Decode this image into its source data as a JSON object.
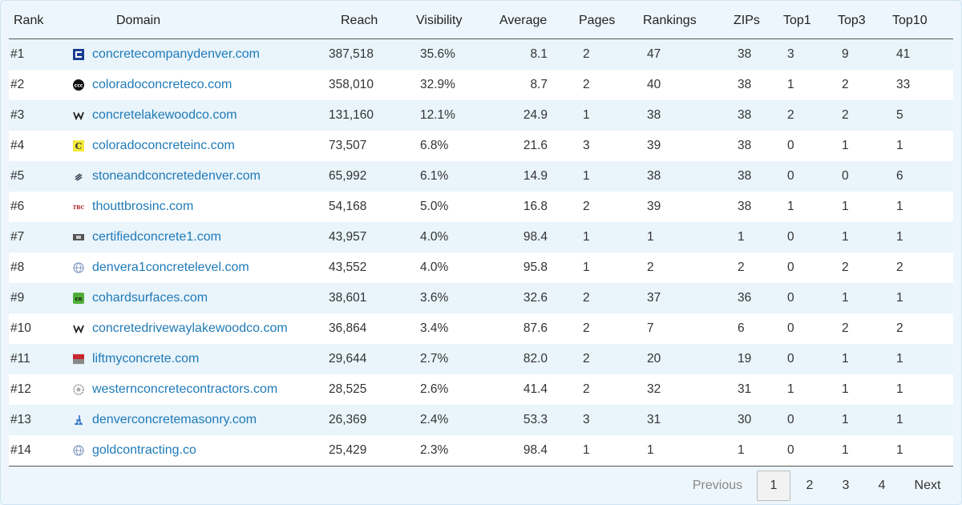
{
  "headers": {
    "rank": "Rank",
    "domain": "Domain",
    "reach": "Reach",
    "visibility": "Visibility",
    "average": "Average",
    "pages": "Pages",
    "rankings": "Rankings",
    "zips": "ZIPs",
    "top1": "Top1",
    "top3": "Top3",
    "top10": "Top10"
  },
  "rows": [
    {
      "rank": "#1",
      "domain": "concretecompanydenver.com",
      "icon": "square-logo-icon",
      "reach": "387,518",
      "visibility": "35.6%",
      "average": "8.1",
      "pages": "2",
      "rankings": "47",
      "zips": "38",
      "top1": "3",
      "top3": "9",
      "top10": "41"
    },
    {
      "rank": "#2",
      "domain": "coloradoconcreteco.com",
      "icon": "black-circle-logo-icon",
      "reach": "358,010",
      "visibility": "32.9%",
      "average": "8.7",
      "pages": "2",
      "rankings": "40",
      "zips": "38",
      "top1": "1",
      "top3": "2",
      "top10": "33"
    },
    {
      "rank": "#3",
      "domain": "concretelakewoodco.com",
      "icon": "w-logo-icon",
      "reach": "131,160",
      "visibility": "12.1%",
      "average": "24.9",
      "pages": "1",
      "rankings": "38",
      "zips": "38",
      "top1": "2",
      "top3": "2",
      "top10": "5"
    },
    {
      "rank": "#4",
      "domain": "coloradoconcreteinc.com",
      "icon": "yellow-c-logo-icon",
      "reach": "73,507",
      "visibility": "6.8%",
      "average": "21.6",
      "pages": "3",
      "rankings": "39",
      "zips": "38",
      "top1": "0",
      "top3": "1",
      "top10": "1"
    },
    {
      "rank": "#5",
      "domain": "stoneandconcretedenver.com",
      "icon": "stripe-logo-icon",
      "reach": "65,992",
      "visibility": "6.1%",
      "average": "14.9",
      "pages": "1",
      "rankings": "38",
      "zips": "38",
      "top1": "0",
      "top3": "0",
      "top10": "6"
    },
    {
      "rank": "#6",
      "domain": "thouttbrosinc.com",
      "icon": "tbc-logo-icon",
      "reach": "54,168",
      "visibility": "5.0%",
      "average": "16.8",
      "pages": "2",
      "rankings": "39",
      "zips": "38",
      "top1": "1",
      "top3": "1",
      "top10": "1"
    },
    {
      "rank": "#7",
      "domain": "certifiedconcrete1.com",
      "icon": "grey-badge-logo-icon",
      "reach": "43,957",
      "visibility": "4.0%",
      "average": "98.4",
      "pages": "1",
      "rankings": "1",
      "zips": "1",
      "top1": "0",
      "top3": "1",
      "top10": "1"
    },
    {
      "rank": "#8",
      "domain": "denvera1concretelevel.com",
      "icon": "globe-icon",
      "reach": "43,552",
      "visibility": "4.0%",
      "average": "95.8",
      "pages": "1",
      "rankings": "2",
      "zips": "2",
      "top1": "0",
      "top3": "2",
      "top10": "2"
    },
    {
      "rank": "#9",
      "domain": "cohardsurfaces.com",
      "icon": "green-co-logo-icon",
      "reach": "38,601",
      "visibility": "3.6%",
      "average": "32.6",
      "pages": "2",
      "rankings": "37",
      "zips": "36",
      "top1": "0",
      "top3": "1",
      "top10": "1"
    },
    {
      "rank": "#10",
      "domain": "concretedrivewaylakewoodco.com",
      "icon": "w-logo-icon",
      "reach": "36,864",
      "visibility": "3.4%",
      "average": "87.6",
      "pages": "2",
      "rankings": "7",
      "zips": "6",
      "top1": "0",
      "top3": "2",
      "top10": "2"
    },
    {
      "rank": "#11",
      "domain": "liftmyconcrete.com",
      "icon": "red-grey-logo-icon",
      "reach": "29,644",
      "visibility": "2.7%",
      "average": "82.0",
      "pages": "2",
      "rankings": "20",
      "zips": "19",
      "top1": "0",
      "top3": "1",
      "top10": "1"
    },
    {
      "rank": "#12",
      "domain": "westernconcretecontractors.com",
      "icon": "gear-circle-logo-icon",
      "reach": "28,525",
      "visibility": "2.6%",
      "average": "41.4",
      "pages": "2",
      "rankings": "32",
      "zips": "31",
      "top1": "1",
      "top3": "1",
      "top10": "1"
    },
    {
      "rank": "#13",
      "domain": "denverconcretemasonry.com",
      "icon": "blue-figure-logo-icon",
      "reach": "26,369",
      "visibility": "2.4%",
      "average": "53.3",
      "pages": "3",
      "rankings": "31",
      "zips": "30",
      "top1": "0",
      "top3": "1",
      "top10": "1"
    },
    {
      "rank": "#14",
      "domain": "goldcontracting.co",
      "icon": "globe-icon",
      "reach": "25,429",
      "visibility": "2.3%",
      "average": "98.4",
      "pages": "1",
      "rankings": "1",
      "zips": "1",
      "top1": "0",
      "top3": "1",
      "top10": "1"
    }
  ],
  "pagination": {
    "previous": "Previous",
    "pages": [
      "1",
      "2",
      "3",
      "4"
    ],
    "current": "1",
    "next": "Next"
  },
  "colors": {
    "link": "#1f7ab8",
    "row_alt": "#e9f4fb",
    "background": "#edf6fc"
  }
}
